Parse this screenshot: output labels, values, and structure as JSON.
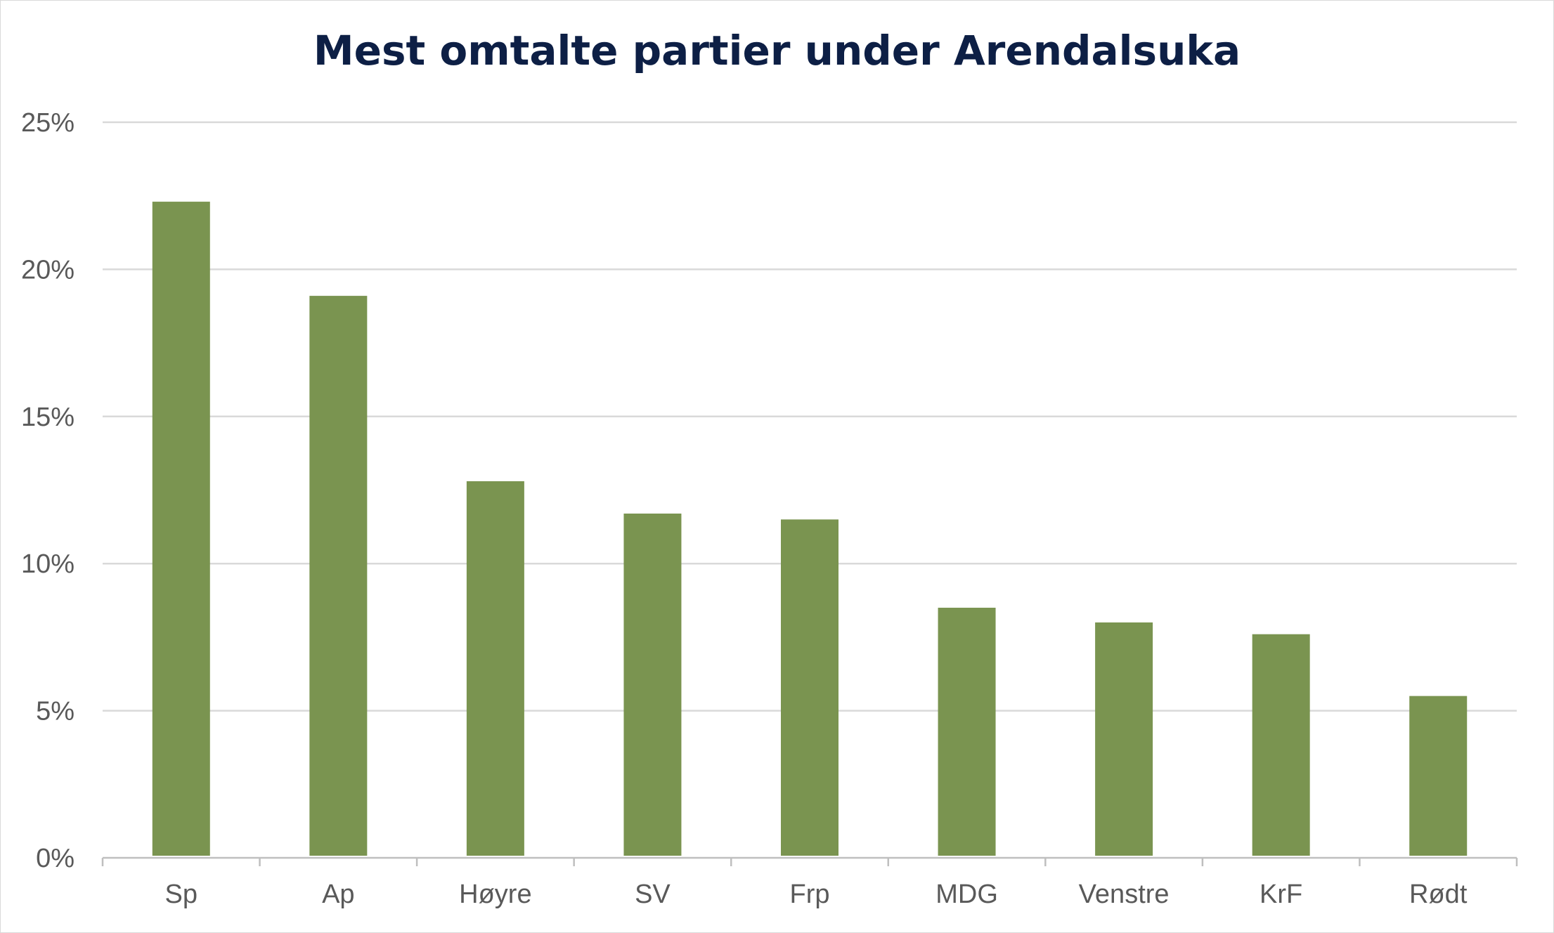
{
  "chart_data": {
    "type": "bar",
    "title": "Mest omtalte partier under Arendalsuka",
    "categories": [
      "Sp",
      "Ap",
      "Høyre",
      "SV",
      "Frp",
      "MDG",
      "Venstre",
      "KrF",
      "Rødt"
    ],
    "values": [
      22.3,
      19.1,
      12.8,
      11.7,
      11.5,
      8.5,
      8.0,
      7.6,
      5.5
    ],
    "ylim": [
      0,
      25
    ],
    "yticks": [
      "0%",
      "5%",
      "10%",
      "15%",
      "20%",
      "25%"
    ],
    "ytick_values": [
      0,
      5,
      10,
      15,
      20,
      25
    ],
    "grid": true,
    "xlabel": "",
    "ylabel": "",
    "colors": {
      "bar": "#7a9450",
      "title": "#0d1f45",
      "grid": "#d9d9d9",
      "axis": "#bfbfbf",
      "tick_text": "#595959"
    }
  }
}
